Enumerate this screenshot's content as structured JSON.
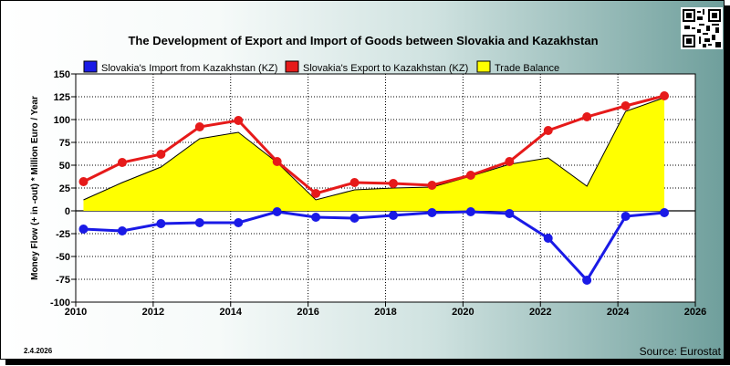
{
  "title": "The Development of Export and Import of Goods between Slovakia and Kazakhstan",
  "date_label": "2.4.2026",
  "source": "Source: Eurostat",
  "colors": {
    "import": "#1a1ae6",
    "export": "#e61a1a",
    "balance": "#ffff00",
    "grid": "#000000"
  },
  "chart_data": {
    "type": "line",
    "title": "The Development of Export and Import of Goods between Slovakia and Kazakhstan",
    "xlabel": "",
    "ylabel": "Money Flow (+ in -out) * Million Euro / Year",
    "xlim": [
      2010,
      2026
    ],
    "ylim": [
      -100,
      150
    ],
    "x_ticks": [
      2010,
      2012,
      2014,
      2016,
      2018,
      2020,
      2022,
      2024,
      2026
    ],
    "y_ticks": [
      -100,
      -75,
      -50,
      -25,
      0,
      25,
      50,
      75,
      100,
      125,
      150
    ],
    "legend": [
      "Slovakia's Import from Kazakhstan (KZ)",
      "Slovakia's Export to Kazakhstan (KZ)",
      "Trade Balance"
    ],
    "series": [
      {
        "name": "Slovakia's Import from Kazakhstan (KZ)",
        "type": "line",
        "x": [
          2010.2,
          2011.2,
          2012.2,
          2013.2,
          2014.2,
          2015.2,
          2016.2,
          2017.2,
          2018.2,
          2019.2,
          2020.2,
          2021.2,
          2022.2,
          2023.2,
          2024.2,
          2025.2
        ],
        "values": [
          -20,
          -22,
          -14,
          -13,
          -13,
          -1,
          -7,
          -8,
          -5,
          -2,
          -1,
          -3,
          -30,
          -76,
          -6,
          -2
        ]
      },
      {
        "name": "Slovakia's Export to Kazakhstan (KZ)",
        "type": "line",
        "x": [
          2010.2,
          2011.2,
          2012.2,
          2013.2,
          2014.2,
          2015.2,
          2016.2,
          2017.2,
          2018.2,
          2019.2,
          2020.2,
          2021.2,
          2022.2,
          2023.2,
          2024.2,
          2025.2
        ],
        "values": [
          32,
          53,
          62,
          92,
          99,
          54,
          19,
          31,
          30,
          28,
          39,
          54,
          88,
          103,
          115,
          126
        ]
      },
      {
        "name": "Trade Balance",
        "type": "area",
        "x": [
          2010.2,
          2011.2,
          2012.2,
          2013.2,
          2014.2,
          2015.2,
          2016.2,
          2017.2,
          2018.2,
          2019.2,
          2020.2,
          2021.2,
          2022.2,
          2023.2,
          2024.2,
          2025.2
        ],
        "values": [
          12,
          31,
          48,
          79,
          86,
          53,
          12,
          23,
          25,
          26,
          38,
          51,
          58,
          27,
          109,
          124
        ]
      }
    ]
  }
}
